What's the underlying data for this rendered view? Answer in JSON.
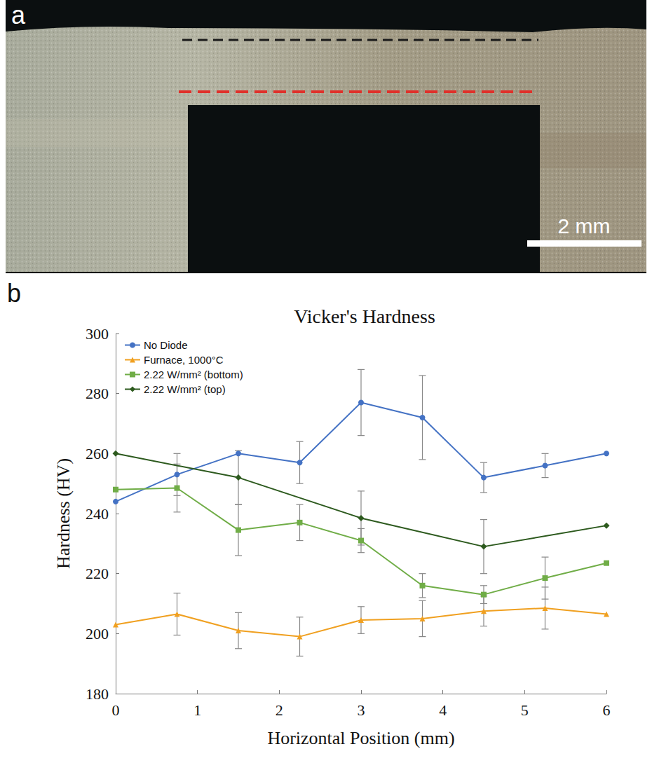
{
  "panels": {
    "a": {
      "label": "a",
      "scale_bar": "2 mm"
    },
    "b": {
      "label": "b"
    }
  },
  "chart_data": {
    "type": "line",
    "title": "Vicker's Hardness",
    "x_label": "Horizontal Position (mm)",
    "y_label": "Hardness (HV)",
    "xlim": [
      0,
      6
    ],
    "xticks": [
      0,
      1,
      2,
      3,
      4,
      5,
      6
    ],
    "ylim": [
      180,
      300
    ],
    "yticks": [
      180,
      200,
      220,
      240,
      260,
      280,
      300
    ],
    "grid": false,
    "legend": "top-left",
    "series": [
      {
        "name": "No Diode",
        "color": "#4472c4",
        "marker": "circle",
        "line_style": "solid",
        "x": [
          0,
          0.75,
          1.5,
          2.25,
          3,
          3.75,
          4.5,
          5.25,
          6
        ],
        "values": [
          244,
          253,
          260,
          257,
          277,
          272,
          252,
          256,
          260
        ],
        "errors": [
          null,
          7,
          null,
          7,
          11,
          14,
          5,
          4,
          null
        ]
      },
      {
        "name": "Furnace, 1000°C",
        "color": "#f0a020",
        "marker": "triangle",
        "line_style": "solid",
        "x": [
          0,
          0.75,
          1.5,
          2.25,
          3,
          3.75,
          4.5,
          5.25,
          6
        ],
        "values": [
          203,
          206.5,
          201,
          199,
          204.5,
          205,
          207.5,
          208.5,
          206.5
        ],
        "errors": [
          null,
          7,
          6,
          6.5,
          4.5,
          6,
          5,
          7,
          null
        ]
      },
      {
        "name": "2.22 W/mm² (bottom)",
        "color": "#70ad47",
        "marker": "square",
        "line_style": "solid",
        "x": [
          0,
          0.75,
          1.5,
          2.25,
          3,
          3.75,
          4.5,
          5.25,
          6
        ],
        "values": [
          248,
          248.5,
          234.5,
          237,
          231,
          216,
          213,
          218.5,
          223.5
        ],
        "errors": [
          null,
          8,
          8.5,
          6,
          4,
          4,
          3,
          7,
          null
        ]
      },
      {
        "name": "2.22 W/mm² (top)",
        "color": "#2d5a1e",
        "marker": "diamond",
        "line_style": "solid",
        "x": [
          0,
          1.5,
          3,
          4.5,
          6
        ],
        "values": [
          260,
          252,
          238.5,
          229,
          236
        ],
        "errors": [
          null,
          9,
          9,
          9,
          null
        ]
      }
    ]
  }
}
